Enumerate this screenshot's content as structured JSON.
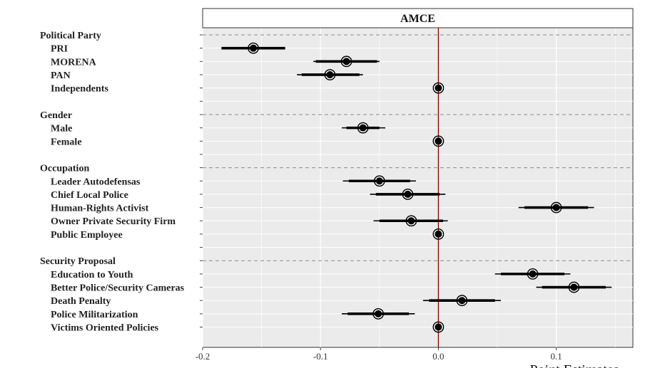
{
  "chart_data": {
    "type": "scatter",
    "title": "AMCE",
    "xlabel": "Point Estimates",
    "ylabel": "",
    "xlim": [
      -0.2,
      0.165
    ],
    "x_ticks": [
      {
        "value": -0.2,
        "label": "-0.2"
      },
      {
        "value": -0.1,
        "label": "-0.1"
      },
      {
        "value": 0.0,
        "label": "0.0"
      },
      {
        "value": 0.1,
        "label": "0.1"
      }
    ],
    "reference_line": 0.0,
    "grid": true,
    "rows": [
      {
        "label": "Political Party",
        "header": true
      },
      {
        "label": "PRI",
        "estimate": -0.157,
        "ci90": [
          -0.13,
          -0.184
        ],
        "ci95": [
          -0.184,
          -0.13
        ]
      },
      {
        "label": "MORENA",
        "estimate": -0.078,
        "ci90": [
          -0.104,
          -0.052
        ],
        "ci95": [
          -0.106,
          -0.05
        ]
      },
      {
        "label": "PAN",
        "estimate": -0.092,
        "ci90": [
          -0.116,
          -0.067
        ],
        "ci95": [
          -0.12,
          -0.064
        ]
      },
      {
        "label": "Independents",
        "estimate": 0.0,
        "ci90": [
          0.0,
          0.0
        ],
        "ci95": [
          0.0,
          0.0
        ]
      },
      {
        "label": "",
        "spacer": true
      },
      {
        "label": "Gender",
        "header": true
      },
      {
        "label": "Male",
        "estimate": -0.064,
        "ci90": [
          -0.078,
          -0.05
        ],
        "ci95": [
          -0.082,
          -0.045
        ]
      },
      {
        "label": "Female",
        "estimate": 0.0,
        "ci90": [
          0.0,
          0.0
        ],
        "ci95": [
          0.0,
          0.0
        ]
      },
      {
        "label": "",
        "spacer": true
      },
      {
        "label": "Occupation",
        "header": true
      },
      {
        "label": "Leader Autodefensas",
        "estimate": -0.05,
        "ci90": [
          -0.076,
          -0.024
        ],
        "ci95": [
          -0.081,
          -0.019
        ]
      },
      {
        "label": "Chief Local Police",
        "estimate": -0.026,
        "ci90": [
          -0.053,
          0.001
        ],
        "ci95": [
          -0.058,
          0.006
        ]
      },
      {
        "label": "Human-Rights Activist",
        "estimate": 0.1,
        "ci90": [
          0.073,
          0.127
        ],
        "ci95": [
          0.068,
          0.132
        ]
      },
      {
        "label": "Owner Private  Security Firm",
        "estimate": -0.023,
        "ci90": [
          -0.05,
          0.004
        ],
        "ci95": [
          -0.055,
          0.008
        ]
      },
      {
        "label": "Public Employee",
        "estimate": 0.0,
        "ci90": [
          0.0,
          0.0
        ],
        "ci95": [
          0.0,
          0.0
        ]
      },
      {
        "label": "",
        "spacer": true
      },
      {
        "label": "Security Proposal",
        "header": true
      },
      {
        "label": "Education to Youth",
        "estimate": 0.08,
        "ci90": [
          0.053,
          0.107
        ],
        "ci95": [
          0.048,
          0.112
        ]
      },
      {
        "label": "Better Police/Security Cameras",
        "estimate": 0.115,
        "ci90": [
          0.088,
          0.142
        ],
        "ci95": [
          0.083,
          0.147
        ]
      },
      {
        "label": "Death Penalty",
        "estimate": 0.02,
        "ci90": [
          -0.008,
          0.048
        ],
        "ci95": [
          -0.013,
          0.053
        ]
      },
      {
        "label": "Police Militarization",
        "estimate": -0.051,
        "ci90": [
          -0.077,
          -0.025
        ],
        "ci95": [
          -0.082,
          -0.02
        ]
      },
      {
        "label": "Victims Oriented Policies",
        "estimate": 0.0,
        "ci90": [
          0.0,
          0.0
        ],
        "ci95": [
          0.0,
          0.0
        ]
      }
    ],
    "colors": {
      "panel_bg": "#ebebeb",
      "strip_bg": "#ffffff",
      "point": "#000000",
      "reference_line": "#8b0000",
      "grid": "#ffffff",
      "header_line": "#8c8c8c"
    }
  }
}
